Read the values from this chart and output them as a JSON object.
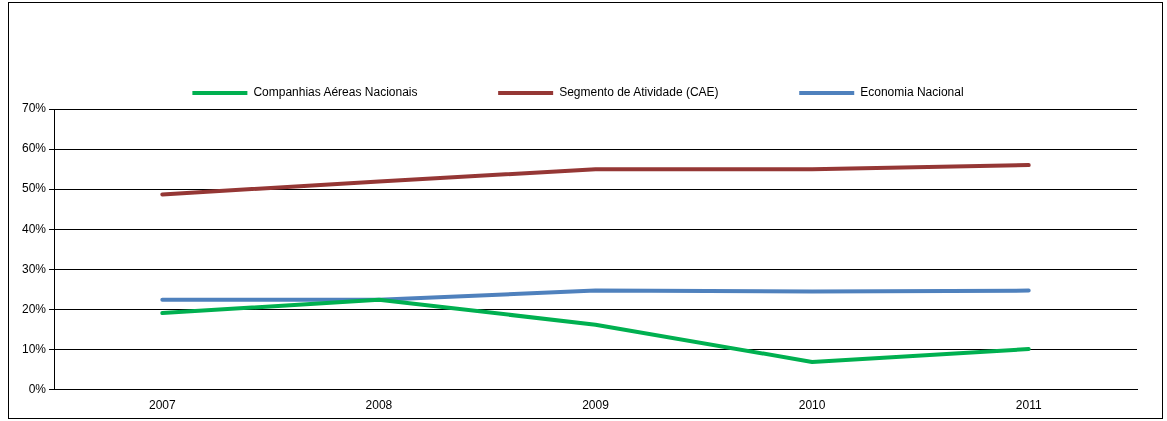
{
  "chart_data": {
    "type": "line",
    "categories": [
      "2007",
      "2008",
      "2009",
      "2010",
      "2011"
    ],
    "series": [
      {
        "name": "Companhias Aéreas Nacionais",
        "color": "#00b050",
        "values": [
          19.1,
          22.4,
          16.2,
          6.9,
          10.1
        ]
      },
      {
        "name": "Segmento de Atividade (CAE)",
        "color": "#953735",
        "values": [
          48.7,
          51.9,
          55.0,
          55.0,
          56.0
        ]
      },
      {
        "name": "Economia Nacional",
        "color": "#4f81bd",
        "values": [
          22.4,
          22.4,
          24.7,
          24.5,
          24.7
        ]
      }
    ],
    "ylim": [
      0,
      70
    ],
    "yticks": [
      {
        "value": 0,
        "label": "0%"
      },
      {
        "value": 10,
        "label": "10%"
      },
      {
        "value": 20,
        "label": "20%"
      },
      {
        "value": 30,
        "label": "30%"
      },
      {
        "value": 40,
        "label": "40%"
      },
      {
        "value": 50,
        "label": "50%"
      },
      {
        "value": 60,
        "label": "60%"
      },
      {
        "value": 70,
        "label": "70%"
      }
    ],
    "grid": "y",
    "legend": "top",
    "marker": "none",
    "line_style": "solid"
  }
}
